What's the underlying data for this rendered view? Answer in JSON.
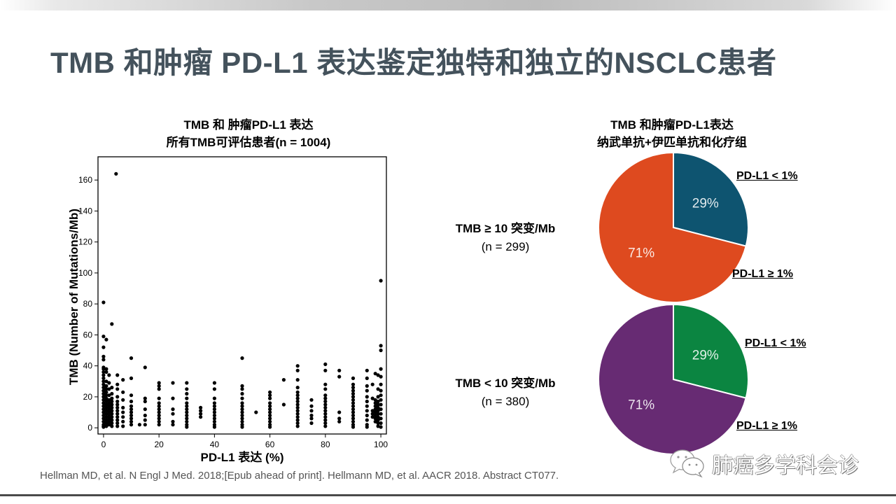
{
  "slide": {
    "title": "TMB 和肿瘤 PD-L1 表达鉴定独特和独立的NSCLC患者",
    "citation": "Hellman MD, et al. N Engl J Med. 2018;[Epub ahead of print]. Hellmann MD, et al. AACR 2018. Abstract CT077.",
    "watermark": "肺癌多学科会诊",
    "watermark_icon": "wechat-icon"
  },
  "chart_data": [
    {
      "type": "scatter",
      "title": [
        "TMB 和 肿瘤PD-L1 表达",
        "所有TMB可评估患者(n = 1004)"
      ],
      "xlabel": "PD-L1 表达 (%)",
      "ylabel": "TMB (Number of Mutations/Mb)",
      "xlim": [
        -2,
        102
      ],
      "ylim": [
        -4,
        175
      ],
      "xticks": [
        0,
        20,
        40,
        60,
        80,
        100
      ],
      "yticks": [
        0,
        20,
        40,
        60,
        80,
        100,
        120,
        140,
        160
      ],
      "grid": false,
      "marker_color": "#000000",
      "columns": [
        {
          "x": 0,
          "ys": [
            81,
            59,
            52,
            46,
            44,
            39,
            38,
            36,
            34,
            32,
            30,
            28,
            26,
            24,
            22,
            20,
            18,
            16,
            14,
            12,
            10,
            8,
            6,
            4,
            2,
            1,
            0.5
          ]
        },
        {
          "x": 1,
          "ys": [
            57,
            38,
            36,
            30,
            27,
            25,
            23,
            21,
            19,
            17,
            15,
            13,
            11,
            9,
            7,
            5,
            3,
            1
          ]
        },
        {
          "x": 2,
          "ys": [
            34,
            29,
            25,
            21,
            18,
            16,
            14,
            12,
            10,
            8,
            6,
            4,
            2
          ]
        },
        {
          "x": 3,
          "ys": [
            67,
            26,
            22,
            19,
            17,
            15,
            13,
            11,
            9,
            7,
            5,
            3,
            1
          ]
        },
        {
          "x": 5,
          "ys": [
            34,
            28,
            25,
            20,
            17,
            15,
            13,
            11,
            9,
            7,
            5,
            3,
            1
          ]
        },
        {
          "x": 7,
          "ys": [
            31,
            23,
            18,
            13,
            10,
            7,
            4,
            1
          ]
        },
        {
          "x": 10,
          "ys": [
            45,
            32,
            21,
            17,
            14,
            12,
            10,
            8,
            6,
            4,
            2
          ]
        },
        {
          "x": 13,
          "ys": [
            2
          ]
        },
        {
          "x": 15,
          "ys": [
            39,
            19,
            17,
            12,
            8,
            5,
            2
          ]
        },
        {
          "x": 20,
          "ys": [
            29,
            27,
            25,
            19,
            16,
            14,
            12,
            10,
            8,
            6,
            4,
            2
          ]
        },
        {
          "x": 25,
          "ys": [
            29,
            19,
            12,
            9,
            4,
            2
          ]
        },
        {
          "x": 30,
          "ys": [
            29,
            25,
            22,
            19,
            16,
            14,
            12,
            10,
            8,
            6,
            4,
            2,
            0.5
          ]
        },
        {
          "x": 35,
          "ys": [
            13,
            11,
            9,
            7
          ]
        },
        {
          "x": 40,
          "ys": [
            29,
            25,
            19,
            16,
            14,
            12,
            10,
            8,
            6,
            4,
            2,
            0.5
          ]
        },
        {
          "x": 50,
          "ys": [
            45,
            27,
            25,
            22,
            19,
            16,
            14,
            12,
            10,
            8,
            6,
            4,
            2,
            0.5
          ]
        },
        {
          "x": 55,
          "ys": [
            10
          ]
        },
        {
          "x": 60,
          "ys": [
            23,
            21,
            19,
            16,
            14,
            12,
            10,
            8,
            6,
            4,
            2,
            0.5
          ]
        },
        {
          "x": 65,
          "ys": [
            31,
            15
          ]
        },
        {
          "x": 70,
          "ys": [
            40,
            37,
            31,
            26,
            23,
            21,
            19,
            17,
            15,
            13,
            11,
            9,
            7,
            5,
            3,
            1
          ]
        },
        {
          "x": 75,
          "ys": [
            18,
            14,
            11,
            8,
            6,
            3
          ]
        },
        {
          "x": 80,
          "ys": [
            41,
            37,
            28,
            25,
            21,
            19,
            17,
            15,
            13,
            11,
            9,
            7,
            5,
            3,
            1
          ]
        },
        {
          "x": 85,
          "ys": [
            37,
            33,
            10,
            6,
            4
          ]
        },
        {
          "x": 90,
          "ys": [
            32,
            28,
            26,
            24,
            22,
            20,
            18,
            16,
            14,
            12,
            10,
            8,
            6,
            4,
            2,
            0.5
          ]
        },
        {
          "x": 95,
          "ys": [
            37,
            32,
            27,
            24,
            20,
            17,
            14,
            11,
            8,
            5,
            2,
            0.5
          ]
        },
        {
          "x": 97,
          "ys": [
            28,
            19,
            11,
            9,
            7
          ]
        },
        {
          "x": 98,
          "ys": [
            35,
            18,
            16,
            14,
            12,
            10,
            8,
            6,
            4
          ]
        },
        {
          "x": 99,
          "ys": [
            34,
            25,
            20,
            17,
            15,
            13,
            11,
            9,
            7,
            5,
            3,
            1
          ]
        },
        {
          "x": 100,
          "ys": [
            95,
            53,
            50,
            38,
            33,
            28,
            24,
            21,
            18,
            15,
            12,
            9,
            6,
            3,
            0.5
          ]
        },
        {
          "x": 4.5,
          "ys": [
            164
          ]
        }
      ]
    },
    {
      "type": "pie",
      "title": [
        "TMB 和肿瘤PD-L1表达",
        "纳武单抗+伊匹单抗和化疗组"
      ],
      "group_label": "TMB ≥ 10 突变/Mb",
      "group_n": "(n = 299)",
      "slices": [
        {
          "label": "PD-L1 < 1%",
          "value": 29,
          "display": "29%",
          "color": "#0e5470"
        },
        {
          "label": "PD-L1 ≥ 1%",
          "value": 71,
          "display": "71%",
          "color": "#de4a1f"
        }
      ]
    },
    {
      "type": "pie",
      "group_label": "TMB < 10 突变/Mb",
      "group_n": "(n = 380)",
      "slices": [
        {
          "label": "PD-L1 < 1%",
          "value": 29,
          "display": "29%",
          "color": "#0b8541"
        },
        {
          "label": "PD-L1 ≥ 1%",
          "value": 71,
          "display": "71%",
          "color": "#672b73"
        }
      ]
    }
  ]
}
